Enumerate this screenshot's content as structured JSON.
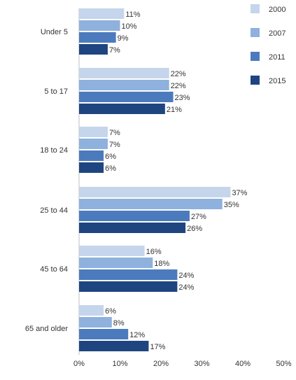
{
  "chart_data": {
    "type": "bar",
    "orientation": "horizontal",
    "categories": [
      "Under 5",
      "5 to 17",
      "18 to 24",
      "25 to 44",
      "45 to 64",
      "65 and older"
    ],
    "series": [
      {
        "name": "2000",
        "values": [
          11,
          22,
          7,
          37,
          16,
          6
        ],
        "labels": [
          "11%",
          "22%",
          "7%",
          "37%",
          "16%",
          "6%"
        ],
        "color": "#c5d5eb"
      },
      {
        "name": "2007",
        "values": [
          10,
          22,
          7,
          35,
          18,
          8
        ],
        "labels": [
          "10%",
          "22%",
          "7%",
          "35%",
          "18%",
          "8%"
        ],
        "color": "#8eb1dd"
      },
      {
        "name": "2011",
        "values": [
          9,
          23,
          6,
          27,
          24,
          12
        ],
        "labels": [
          "9%",
          "23%",
          "6%",
          "27%",
          "24%",
          "12%"
        ],
        "color": "#4c7bbd"
      },
      {
        "name": "2015",
        "values": [
          7,
          21,
          6,
          26,
          24,
          17
        ],
        "labels": [
          "7%",
          "21%",
          "6%",
          "26%",
          "24%",
          "17%"
        ],
        "color": "#1f4580"
      }
    ],
    "xlim": [
      0,
      50
    ],
    "xticks": [
      0,
      10,
      20,
      30,
      40,
      50
    ],
    "xtick_labels": [
      "0%",
      "10%",
      "20%",
      "30%",
      "40%",
      "50%"
    ],
    "legend_position": "top-right",
    "grid": false
  }
}
